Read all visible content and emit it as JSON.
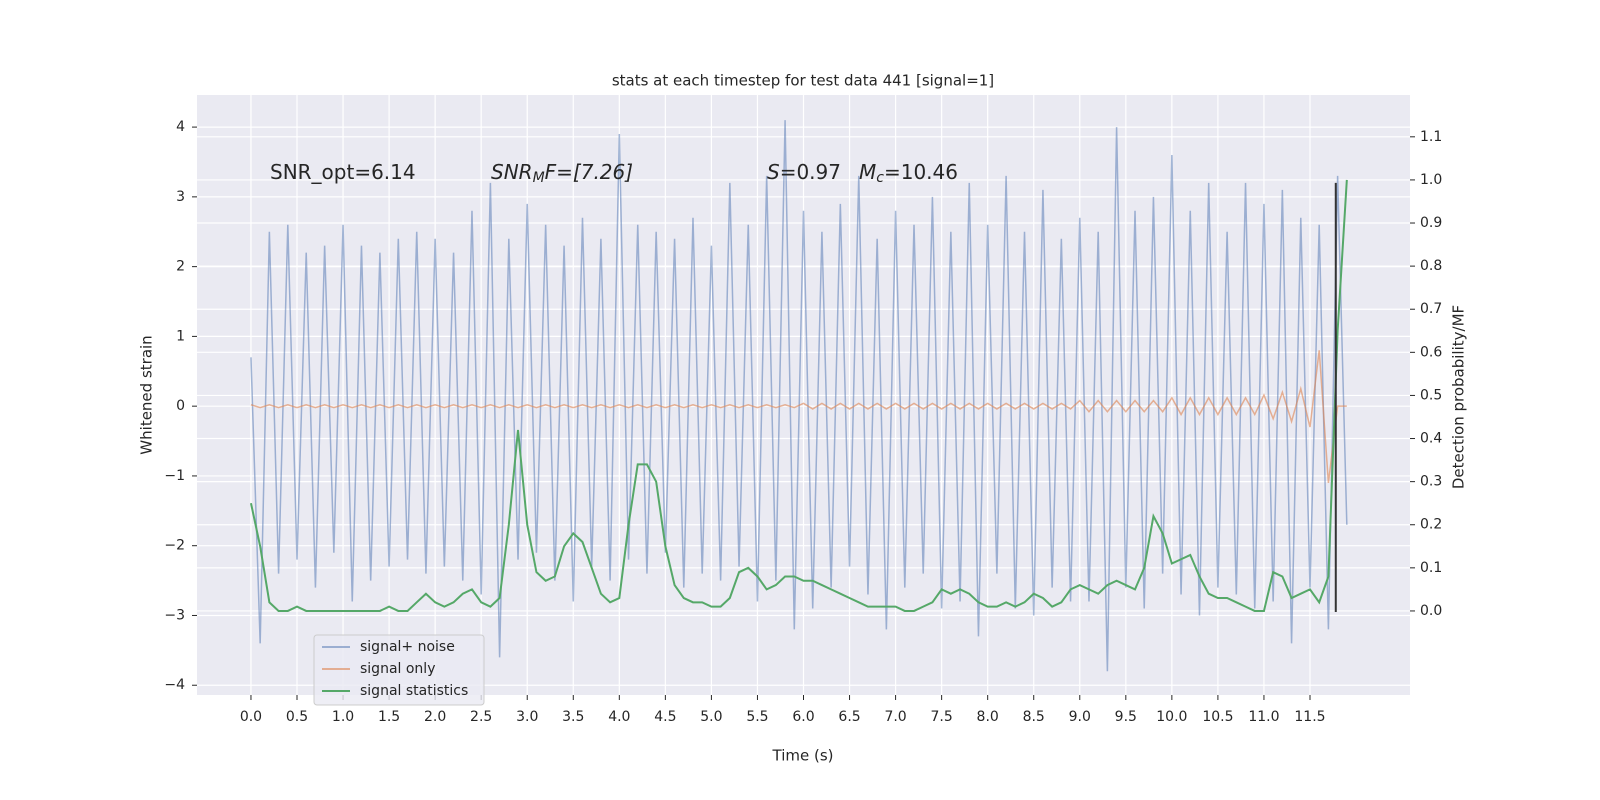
{
  "chart_data": {
    "type": "line",
    "title": "stats at each timestep for test data 441 [signal=1]",
    "xlabel": "Time (s)",
    "ylabel": "Whitened strain",
    "y2label": "Detection probability/MF",
    "annotations": [
      {
        "text": "SNR_opt=6.14"
      },
      {
        "italic": "SNR",
        "sub": "M",
        "rest": "F=[7.26]"
      },
      {
        "italic": "S",
        "rest": "=0.97"
      },
      {
        "italic": "M",
        "sub": "c",
        "rest": "=10.46"
      }
    ],
    "x": [
      0,
      0.1,
      0.2,
      0.3,
      0.4,
      0.5,
      0.6,
      0.7,
      0.8,
      0.9,
      1,
      1.1,
      1.2,
      1.3,
      1.4,
      1.5,
      1.6,
      1.7,
      1.8,
      1.9,
      2,
      2.1,
      2.2,
      2.3,
      2.4,
      2.5,
      2.6,
      2.7,
      2.8,
      2.9,
      3,
      3.1,
      3.2,
      3.3,
      3.4,
      3.5,
      3.6,
      3.7,
      3.8,
      3.9,
      4,
      4.1,
      4.2,
      4.3,
      4.4,
      4.5,
      4.6,
      4.7,
      4.8,
      4.9,
      5,
      5.1,
      5.2,
      5.3,
      5.4,
      5.5,
      5.6,
      5.7,
      5.8,
      5.9,
      6,
      6.1,
      6.2,
      6.3,
      6.4,
      6.5,
      6.6,
      6.7,
      6.8,
      6.9,
      7,
      7.1,
      7.2,
      7.3,
      7.4,
      7.5,
      7.6,
      7.7,
      7.8,
      7.9,
      8,
      8.1,
      8.2,
      8.3,
      8.4,
      8.5,
      8.6,
      8.7,
      8.8,
      8.9,
      9,
      9.1,
      9.2,
      9.3,
      9.4,
      9.5,
      9.6,
      9.7,
      9.8,
      9.9,
      10,
      10.1,
      10.2,
      10.3,
      10.4,
      10.5,
      10.6,
      10.7,
      10.8,
      10.9,
      11,
      11.1,
      11.2,
      11.3,
      11.4,
      11.5,
      11.6,
      11.7,
      11.8,
      11.9
    ],
    "series": [
      {
        "name": "signal+ noise",
        "color": "#4c72b0",
        "opacity": 0.5,
        "values": [
          0.7,
          -3.4,
          2.5,
          -2.4,
          2.6,
          -2.2,
          2.2,
          -2.6,
          2.3,
          -2.1,
          2.6,
          -2.8,
          2.3,
          -2.5,
          2.2,
          -2.3,
          2.4,
          -2.2,
          2.5,
          -2.4,
          2.4,
          -2.3,
          2.2,
          -2.5,
          2.8,
          -2.7,
          3.2,
          -3.6,
          2.4,
          -2.2,
          2.9,
          -2.1,
          2.6,
          -2.5,
          2.3,
          -2.8,
          2.7,
          -2.3,
          2.4,
          -2.5,
          3.9,
          -2.2,
          2.6,
          -2.4,
          2.5,
          -2.1,
          2.4,
          -2.6,
          2.7,
          -2.4,
          2.3,
          -2.5,
          3.2,
          -2.3,
          2.6,
          -2.8,
          3.3,
          -2.5,
          4.1,
          -3.2,
          2.8,
          -2.9,
          2.5,
          -2.6,
          2.9,
          -2.3,
          3.3,
          -2.7,
          2.4,
          -3.2,
          2.8,
          -2.6,
          2.6,
          -2.4,
          3.0,
          -2.9,
          2.5,
          -2.8,
          3.2,
          -3.3,
          2.6,
          -2.4,
          3.3,
          -2.9,
          2.5,
          -3.0,
          3.1,
          -2.6,
          2.4,
          -2.8,
          2.7,
          -2.8,
          2.5,
          -3.8,
          4.0,
          -2.6,
          2.8,
          -2.9,
          3.0,
          -2.4,
          3.6,
          -2.7,
          2.8,
          -3.0,
          3.2,
          -2.6,
          2.5,
          -2.7,
          3.2,
          -2.9,
          2.9,
          -2.8,
          3.1,
          -3.4,
          2.7,
          -2.6,
          2.6,
          -3.2,
          3.3,
          -1.7
        ]
      },
      {
        "name": "signal only",
        "color": "#dd8452",
        "opacity": 0.6,
        "values": [
          0.02,
          -0.02,
          0.02,
          -0.02,
          0.02,
          -0.02,
          0.02,
          -0.02,
          0.02,
          -0.02,
          0.02,
          -0.02,
          0.02,
          -0.02,
          0.02,
          -0.02,
          0.02,
          -0.02,
          0.02,
          -0.02,
          0.02,
          -0.02,
          0.02,
          -0.02,
          0.02,
          -0.02,
          0.02,
          -0.02,
          0.02,
          -0.02,
          0.02,
          -0.02,
          0.02,
          -0.02,
          0.02,
          -0.02,
          0.02,
          -0.02,
          0.02,
          -0.02,
          0.02,
          -0.02,
          0.02,
          -0.02,
          0.02,
          -0.02,
          0.02,
          -0.02,
          0.02,
          -0.02,
          0.02,
          -0.02,
          0.02,
          -0.02,
          0.02,
          -0.02,
          0.02,
          -0.02,
          0.02,
          -0.02,
          0.04,
          -0.04,
          0.04,
          -0.04,
          0.04,
          -0.04,
          0.04,
          -0.04,
          0.04,
          -0.04,
          0.04,
          -0.04,
          0.04,
          -0.04,
          0.04,
          -0.04,
          0.04,
          -0.04,
          0.04,
          -0.04,
          0.04,
          -0.04,
          0.04,
          -0.04,
          0.04,
          -0.04,
          0.04,
          -0.04,
          0.04,
          -0.04,
          0.08,
          -0.08,
          0.08,
          -0.08,
          0.08,
          -0.08,
          0.08,
          -0.08,
          0.08,
          -0.08,
          0.12,
          -0.12,
          0.12,
          -0.12,
          0.12,
          -0.12,
          0.12,
          -0.12,
          0.12,
          -0.12,
          0.16,
          -0.18,
          0.2,
          -0.22,
          0.25,
          -0.3,
          0.8,
          -1.1,
          0.0,
          0.0
        ]
      },
      {
        "name": "signal statistics",
        "color": "#55a868",
        "axis": "y2",
        "values": [
          0.25,
          0.15,
          0.02,
          0.0,
          0.0,
          0.01,
          0.0,
          0.0,
          0.0,
          0.0,
          0.0,
          0.0,
          0.0,
          0.0,
          0.0,
          0.01,
          0.0,
          0.0,
          0.02,
          0.04,
          0.02,
          0.01,
          0.02,
          0.04,
          0.05,
          0.02,
          0.01,
          0.03,
          0.2,
          0.42,
          0.2,
          0.09,
          0.07,
          0.08,
          0.15,
          0.18,
          0.16,
          0.1,
          0.04,
          0.02,
          0.03,
          0.2,
          0.34,
          0.34,
          0.3,
          0.15,
          0.06,
          0.03,
          0.02,
          0.02,
          0.01,
          0.01,
          0.03,
          0.09,
          0.1,
          0.08,
          0.05,
          0.06,
          0.08,
          0.08,
          0.07,
          0.07,
          0.06,
          0.05,
          0.04,
          0.03,
          0.02,
          0.01,
          0.01,
          0.01,
          0.01,
          0.0,
          0.0,
          0.01,
          0.02,
          0.05,
          0.04,
          0.05,
          0.04,
          0.02,
          0.01,
          0.01,
          0.02,
          0.01,
          0.02,
          0.04,
          0.03,
          0.01,
          0.02,
          0.05,
          0.06,
          0.05,
          0.04,
          0.06,
          0.07,
          0.06,
          0.05,
          0.1,
          0.22,
          0.18,
          0.11,
          0.12,
          0.13,
          0.08,
          0.04,
          0.03,
          0.03,
          0.02,
          0.01,
          0.0,
          0.0,
          0.09,
          0.08,
          0.03,
          0.04,
          0.05,
          0.02,
          0.08,
          0.65,
          1.0
        ]
      }
    ],
    "vline": {
      "x": 11.78,
      "y": [
        -2.95,
        3.2
      ],
      "color": "#333333"
    },
    "xlim": [
      -0.586,
      12.586
    ],
    "ylim": [
      -4.14,
      4.46
    ],
    "y2lim": [
      -0.195,
      1.197
    ],
    "xticks": [
      {
        "value": 0,
        "label": "0.0"
      },
      {
        "value": 0.5,
        "label": "0.5"
      },
      {
        "value": 1,
        "label": "1.0"
      },
      {
        "value": 1.5,
        "label": "1.5"
      },
      {
        "value": 2,
        "label": "2.0"
      },
      {
        "value": 2.5,
        "label": "2.5"
      },
      {
        "value": 3,
        "label": "3.0"
      },
      {
        "value": 3.5,
        "label": "3.5"
      },
      {
        "value": 4,
        "label": "4.0"
      },
      {
        "value": 4.5,
        "label": "4.5"
      },
      {
        "value": 5,
        "label": "5.0"
      },
      {
        "value": 5.5,
        "label": "5.5"
      },
      {
        "value": 6,
        "label": "6.0"
      },
      {
        "value": 6.5,
        "label": "6.5"
      },
      {
        "value": 7,
        "label": "7.0"
      },
      {
        "value": 7.5,
        "label": "7.5"
      },
      {
        "value": 8,
        "label": "8.0"
      },
      {
        "value": 8.5,
        "label": "8.5"
      },
      {
        "value": 9,
        "label": "9.0"
      },
      {
        "value": 9.5,
        "label": "9.5"
      },
      {
        "value": 10,
        "label": "10.0"
      },
      {
        "value": 10.5,
        "label": "10.5"
      },
      {
        "value": 11,
        "label": "11.0"
      },
      {
        "value": 11.5,
        "label": "11.5"
      }
    ],
    "yticks": [
      {
        "value": -4,
        "label": "−4"
      },
      {
        "value": -3,
        "label": "−3"
      },
      {
        "value": -2,
        "label": "−2"
      },
      {
        "value": -1,
        "label": "−1"
      },
      0,
      1,
      2,
      3,
      4
    ],
    "y2ticks": [
      {
        "value": 0,
        "label": "0.0"
      },
      {
        "value": 0.1,
        "label": "0.1"
      },
      {
        "value": 0.2,
        "label": "0.2"
      },
      {
        "value": 0.3,
        "label": "0.3"
      },
      {
        "value": 0.4,
        "label": "0.4"
      },
      {
        "value": 0.5,
        "label": "0.5"
      },
      {
        "value": 0.6,
        "label": "0.6"
      },
      {
        "value": 0.7,
        "label": "0.7"
      },
      {
        "value": 0.8,
        "label": "0.8"
      },
      {
        "value": 0.9,
        "label": "0.9"
      },
      {
        "value": 1,
        "label": "1.0"
      },
      {
        "value": 1.1,
        "label": "1.1"
      }
    ],
    "grid": true,
    "legend": "lower left"
  }
}
